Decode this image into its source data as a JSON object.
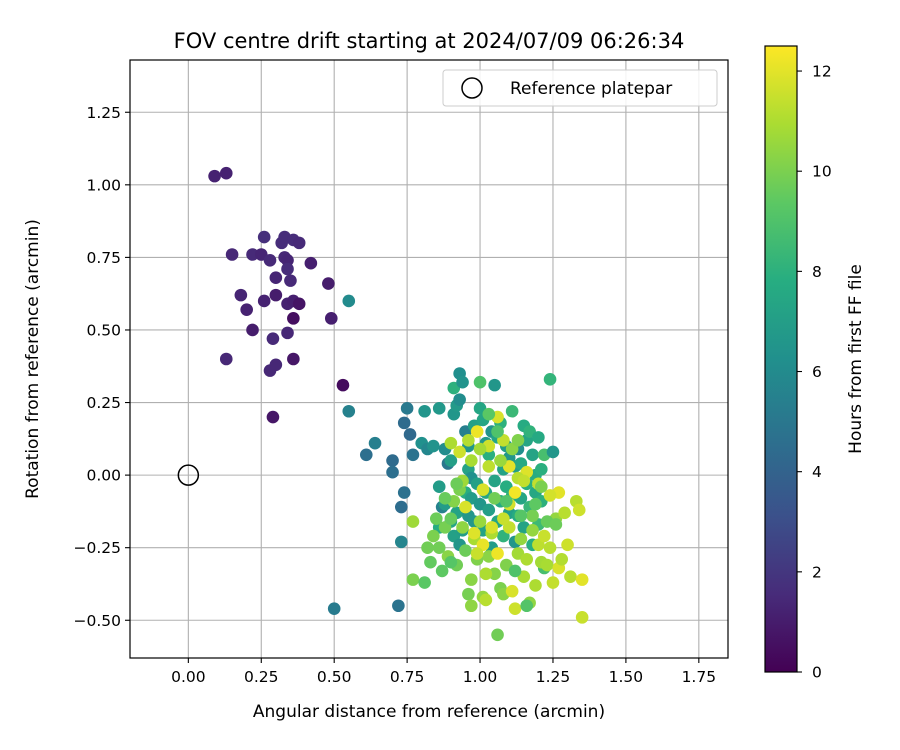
{
  "chart_data": {
    "type": "scatter",
    "title": "FOV centre drift starting at 2024/07/09 06:26:34",
    "xlabel": "Angular distance from reference (arcmin)",
    "ylabel": "Rotation from reference (arcmin)",
    "colorbar_label": "Hours from first FF file",
    "colormap": "viridis",
    "xlim": [
      -0.2,
      1.85
    ],
    "ylim": [
      -0.63,
      1.43
    ],
    "clim": [
      0,
      12.5
    ],
    "xticks": [
      0.0,
      0.25,
      0.5,
      0.75,
      1.0,
      1.25,
      1.5,
      1.75
    ],
    "xtick_labels": [
      "0.00",
      "0.25",
      "0.50",
      "0.75",
      "1.00",
      "1.25",
      "1.50",
      "1.75"
    ],
    "yticks": [
      -0.5,
      -0.25,
      0.0,
      0.25,
      0.5,
      0.75,
      1.0,
      1.25
    ],
    "ytick_labels": [
      "−0.50",
      "−0.25",
      "0.00",
      "0.25",
      "0.50",
      "0.75",
      "1.00",
      "1.25"
    ],
    "cticks": [
      0,
      2,
      4,
      6,
      8,
      10,
      12
    ],
    "ctick_labels": [
      "0",
      "2",
      "4",
      "6",
      "8",
      "10",
      "12"
    ],
    "grid": true,
    "legend_position": "top-right",
    "reference": {
      "label": "Reference platepar",
      "x": 0.0,
      "y": 0.0
    },
    "points": [
      [
        0.09,
        1.03,
        1.2
      ],
      [
        0.13,
        1.04,
        1.2
      ],
      [
        0.15,
        0.76,
        1.4
      ],
      [
        0.18,
        0.62,
        1.3
      ],
      [
        0.2,
        0.57,
        1.2
      ],
      [
        0.22,
        0.5,
        1.0
      ],
      [
        0.22,
        0.76,
        1.5
      ],
      [
        0.25,
        0.76,
        1.3
      ],
      [
        0.26,
        0.82,
        1.7
      ],
      [
        0.26,
        0.6,
        1.2
      ],
      [
        0.28,
        0.74,
        1.5
      ],
      [
        0.28,
        0.36,
        1.4
      ],
      [
        0.29,
        0.47,
        1.5
      ],
      [
        0.3,
        0.38,
        1.4
      ],
      [
        0.3,
        0.68,
        1.3
      ],
      [
        0.3,
        0.62,
        1.0
      ],
      [
        0.32,
        0.8,
        1.6
      ],
      [
        0.33,
        0.82,
        1.6
      ],
      [
        0.33,
        0.75,
        1.4
      ],
      [
        0.34,
        0.74,
        1.3
      ],
      [
        0.34,
        0.71,
        1.6
      ],
      [
        0.35,
        0.67,
        1.5
      ],
      [
        0.34,
        0.59,
        1.2
      ],
      [
        0.34,
        0.49,
        1.4
      ],
      [
        0.36,
        0.81,
        1.6
      ],
      [
        0.36,
        0.6,
        1.1
      ],
      [
        0.36,
        0.54,
        0.5
      ],
      [
        0.36,
        0.4,
        0.8
      ],
      [
        0.38,
        0.8,
        1.5
      ],
      [
        0.38,
        0.59,
        0.7
      ],
      [
        0.42,
        0.73,
        1.1
      ],
      [
        0.48,
        0.66,
        1.0
      ],
      [
        0.49,
        0.54,
        1.1
      ],
      [
        0.29,
        0.2,
        0.8
      ],
      [
        0.13,
        0.4,
        1.4
      ],
      [
        0.53,
        0.31,
        0.4
      ],
      [
        0.55,
        0.6,
        6.0
      ],
      [
        0.55,
        0.22,
        5.5
      ],
      [
        0.5,
        -0.46,
        5.2
      ],
      [
        0.72,
        -0.45,
        4.8
      ],
      [
        0.61,
        0.07,
        4.6
      ],
      [
        0.64,
        0.11,
        5.4
      ],
      [
        0.7,
        0.05,
        4.4
      ],
      [
        0.7,
        0.01,
        4.6
      ],
      [
        0.73,
        -0.11,
        4.5
      ],
      [
        0.74,
        -0.06,
        4.7
      ],
      [
        0.73,
        -0.23,
        5.7
      ],
      [
        0.74,
        0.18,
        4.4
      ],
      [
        0.75,
        0.23,
        5.1
      ],
      [
        0.76,
        0.14,
        4.3
      ],
      [
        0.77,
        0.07,
        4.8
      ],
      [
        0.8,
        0.11,
        6.3
      ],
      [
        0.81,
        0.22,
        6.5
      ],
      [
        0.82,
        0.09,
        5.8
      ],
      [
        0.84,
        0.1,
        6.4
      ],
      [
        0.86,
        0.23,
        6.7
      ],
      [
        0.86,
        -0.04,
        6.9
      ],
      [
        0.87,
        -0.11,
        5.5
      ],
      [
        0.88,
        0.09,
        6.1
      ],
      [
        0.89,
        0.04,
        5.0
      ],
      [
        0.9,
        0.05,
        7.0
      ],
      [
        0.91,
        0.3,
        8.0
      ],
      [
        0.91,
        0.21,
        6.6
      ],
      [
        0.92,
        0.24,
        6.8
      ],
      [
        0.93,
        0.26,
        6.1
      ],
      [
        0.93,
        0.35,
        6.2
      ],
      [
        0.94,
        0.32,
        6.4
      ],
      [
        0.95,
        0.15,
        5.4
      ],
      [
        0.96,
        0.1,
        6.6
      ],
      [
        0.96,
        0.02,
        7.2
      ],
      [
        0.97,
        -0.01,
        6.3
      ],
      [
        0.98,
        0.17,
        7.1
      ],
      [
        1.0,
        0.32,
        9.0
      ],
      [
        1.0,
        0.23,
        7.4
      ],
      [
        1.01,
        0.19,
        7.4
      ],
      [
        1.02,
        0.11,
        6.7
      ],
      [
        1.03,
        0.07,
        7.9
      ],
      [
        1.04,
        0.15,
        6.4
      ],
      [
        1.05,
        0.31,
        6.6
      ],
      [
        1.06,
        0.13,
        7.4
      ],
      [
        1.07,
        0.18,
        8.0
      ],
      [
        1.08,
        0.02,
        7.2
      ],
      [
        1.09,
        0.1,
        6.9
      ],
      [
        1.1,
        0.06,
        6.6
      ],
      [
        1.11,
        0.22,
        8.4
      ],
      [
        1.12,
        0.03,
        7.0
      ],
      [
        1.13,
        0.09,
        6.2
      ],
      [
        1.14,
        0.04,
        7.6
      ],
      [
        1.15,
        0.17,
        7.7
      ],
      [
        1.16,
        0.12,
        7.4
      ],
      [
        1.17,
        0.15,
        8.1
      ],
      [
        1.18,
        0.07,
        7.3
      ],
      [
        1.19,
        0.0,
        7.7
      ],
      [
        1.2,
        0.13,
        7.6
      ],
      [
        1.21,
        0.02,
        7.9
      ],
      [
        1.22,
        0.07,
        8.8
      ],
      [
        1.24,
        0.33,
        8.2
      ],
      [
        1.25,
        0.08,
        6.6
      ],
      [
        0.86,
        -0.18,
        7.7
      ],
      [
        0.88,
        -0.1,
        6.9
      ],
      [
        0.9,
        -0.16,
        7.4
      ],
      [
        0.91,
        -0.21,
        7.1
      ],
      [
        0.92,
        -0.13,
        7.3
      ],
      [
        0.93,
        -0.24,
        6.6
      ],
      [
        0.94,
        -0.19,
        6.9
      ],
      [
        0.95,
        -0.06,
        7.8
      ],
      [
        0.96,
        -0.14,
        6.6
      ],
      [
        0.97,
        -0.08,
        6.9
      ],
      [
        0.98,
        -0.16,
        6.7
      ],
      [
        0.99,
        -0.03,
        7.1
      ],
      [
        1.0,
        -0.1,
        6.6
      ],
      [
        1.01,
        -0.19,
        7.2
      ],
      [
        1.02,
        -0.06,
        7.4
      ],
      [
        1.03,
        -0.12,
        7.0
      ],
      [
        1.04,
        -0.25,
        6.9
      ],
      [
        1.05,
        -0.02,
        7.3
      ],
      [
        1.06,
        -0.16,
        7.4
      ],
      [
        1.07,
        -0.09,
        7.6
      ],
      [
        1.08,
        -0.21,
        8.1
      ],
      [
        1.09,
        -0.04,
        7.8
      ],
      [
        1.1,
        -0.13,
        7.1
      ],
      [
        1.11,
        -0.07,
        8.0
      ],
      [
        1.12,
        -0.23,
        6.6
      ],
      [
        1.13,
        -0.14,
        7.7
      ],
      [
        1.14,
        -0.08,
        7.4
      ],
      [
        1.15,
        -0.18,
        7.3
      ],
      [
        1.16,
        -0.03,
        7.9
      ],
      [
        1.17,
        -0.11,
        8.3
      ],
      [
        1.18,
        -0.24,
        7.8
      ],
      [
        1.19,
        -0.06,
        7.5
      ],
      [
        1.2,
        -0.17,
        8.5
      ],
      [
        1.21,
        -0.09,
        8.0
      ],
      [
        1.22,
        -0.32,
        8.8
      ],
      [
        0.77,
        -0.16,
        10.7
      ],
      [
        0.77,
        -0.36,
        10.0
      ],
      [
        0.81,
        -0.37,
        9.3
      ],
      [
        0.82,
        -0.25,
        9.8
      ],
      [
        0.83,
        -0.3,
        9.5
      ],
      [
        0.84,
        -0.21,
        10.0
      ],
      [
        0.85,
        -0.15,
        9.7
      ],
      [
        0.86,
        -0.25,
        9.8
      ],
      [
        0.87,
        -0.33,
        9.4
      ],
      [
        0.88,
        -0.18,
        9.9
      ],
      [
        0.89,
        -0.28,
        10.3
      ],
      [
        0.9,
        -0.15,
        9.6
      ],
      [
        0.91,
        -0.09,
        10.2
      ],
      [
        0.92,
        -0.31,
        9.8
      ],
      [
        0.93,
        -0.05,
        10.0
      ],
      [
        0.94,
        -0.18,
        10.4
      ],
      [
        0.95,
        -0.26,
        9.7
      ],
      [
        0.96,
        -0.41,
        9.9
      ],
      [
        0.97,
        -0.45,
        10.4
      ],
      [
        0.97,
        -0.36,
        10.3
      ],
      [
        0.98,
        -0.22,
        10.9
      ],
      [
        0.99,
        -0.29,
        10.1
      ],
      [
        1.0,
        -0.16,
        10.6
      ],
      [
        1.01,
        -0.42,
        10.5
      ],
      [
        1.02,
        -0.43,
        11.2
      ],
      [
        1.03,
        -0.28,
        10.3
      ],
      [
        1.04,
        -0.2,
        11.0
      ],
      [
        1.05,
        -0.34,
        10.2
      ],
      [
        1.06,
        -0.55,
        9.8
      ],
      [
        1.07,
        -0.39,
        10.0
      ],
      [
        1.08,
        -0.41,
        10.3
      ],
      [
        1.09,
        -0.31,
        10.1
      ],
      [
        1.1,
        -0.18,
        11.4
      ],
      [
        1.11,
        -0.4,
        11.8
      ],
      [
        1.12,
        -0.46,
        11.6
      ],
      [
        1.13,
        -0.27,
        10.8
      ],
      [
        1.14,
        -0.22,
        10.5
      ],
      [
        1.15,
        -0.35,
        10.9
      ],
      [
        1.16,
        -0.29,
        11.0
      ],
      [
        1.17,
        -0.44,
        10.4
      ],
      [
        1.18,
        -0.19,
        10.5
      ],
      [
        1.19,
        -0.38,
        11.0
      ],
      [
        1.2,
        -0.24,
        11.3
      ],
      [
        1.21,
        -0.3,
        10.8
      ],
      [
        1.22,
        -0.21,
        11.5
      ],
      [
        1.23,
        -0.31,
        10.9
      ],
      [
        1.24,
        -0.25,
        11.2
      ],
      [
        1.25,
        -0.37,
        11.4
      ],
      [
        1.26,
        -0.15,
        10.5
      ],
      [
        1.27,
        -0.32,
        11.8
      ],
      [
        1.28,
        -0.29,
        11.1
      ],
      [
        1.29,
        -0.13,
        11.2
      ],
      [
        1.3,
        -0.24,
        11.6
      ],
      [
        1.31,
        -0.35,
        11.2
      ],
      [
        1.33,
        -0.09,
        11.2
      ],
      [
        1.34,
        -0.12,
        11.6
      ],
      [
        1.35,
        -0.36,
        12.0
      ],
      [
        1.35,
        -0.49,
        11.5
      ],
      [
        1.27,
        -0.06,
        12.0
      ],
      [
        1.24,
        -0.07,
        11.7
      ],
      [
        1.2,
        -0.03,
        11.4
      ],
      [
        1.16,
        0.01,
        11.9
      ],
      [
        1.13,
        -0.01,
        11.2
      ],
      [
        1.1,
        0.03,
        12.0
      ],
      [
        1.08,
        0.12,
        11.4
      ],
      [
        1.06,
        0.2,
        11.8
      ],
      [
        1.03,
        0.1,
        11.6
      ],
      [
        0.99,
        0.15,
        12.2
      ],
      [
        0.96,
        0.12,
        11.1
      ],
      [
        0.93,
        0.08,
        11.6
      ],
      [
        0.9,
        0.11,
        11.0
      ],
      [
        0.95,
        -0.11,
        11.8
      ],
      [
        0.98,
        -0.2,
        11.9
      ],
      [
        1.01,
        -0.24,
        12.1
      ],
      [
        1.04,
        -0.18,
        11.8
      ],
      [
        1.06,
        -0.27,
        12.2
      ],
      [
        1.08,
        -0.15,
        11.5
      ],
      [
        1.1,
        -0.1,
        11.7
      ],
      [
        1.12,
        -0.06,
        12.3
      ],
      [
        1.15,
        -0.02,
        11.4
      ],
      [
        1.03,
        0.03,
        11.3
      ],
      [
        1.01,
        -0.05,
        11.8
      ],
      [
        0.99,
        -0.27,
        11.5
      ],
      [
        1.02,
        -0.34,
        11.0
      ],
      [
        0.94,
        -0.02,
        10.7
      ],
      [
        0.97,
        0.05,
        10.9
      ],
      [
        1.0,
        0.09,
        10.8
      ],
      [
        1.07,
        0.05,
        10.6
      ],
      [
        1.11,
        0.09,
        10.3
      ],
      [
        1.13,
        0.12,
        10.1
      ],
      [
        1.18,
        -0.14,
        9.9
      ],
      [
        1.21,
        -0.04,
        10.0
      ],
      [
        1.23,
        -0.16,
        9.6
      ],
      [
        1.26,
        -0.17,
        9.7
      ],
      [
        1.05,
        -0.08,
        9.8
      ],
      [
        0.92,
        -0.03,
        9.7
      ],
      [
        0.88,
        -0.08,
        9.6
      ],
      [
        1.06,
        0.15,
        9.0
      ],
      [
        1.03,
        0.21,
        9.3
      ],
      [
        1.09,
        -0.09,
        9.1
      ],
      [
        1.14,
        -0.14,
        9.2
      ],
      [
        1.19,
        -0.1,
        9.4
      ],
      [
        0.9,
        -0.3,
        9.2
      ],
      [
        1.12,
        -0.33,
        9.0
      ],
      [
        1.16,
        -0.45,
        9.1
      ]
    ]
  }
}
